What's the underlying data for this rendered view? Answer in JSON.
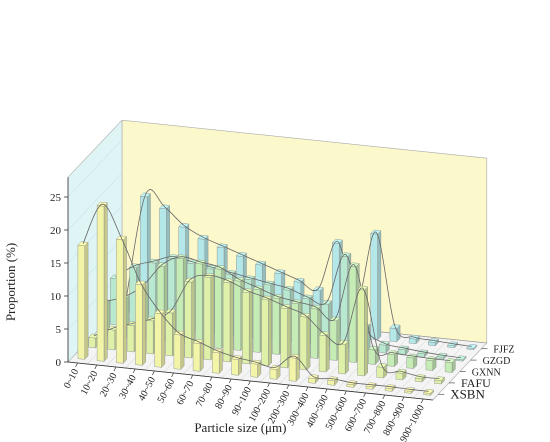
{
  "chart_data": {
    "type": "bar",
    "subtype": "3d-bar-with-smooth-line",
    "title": "",
    "xlabel": "Particle size (μm)",
    "ylabel": "Proportion (%)",
    "ylim": [
      0,
      25
    ],
    "yticks": [
      "0",
      "5",
      "10",
      "15",
      "20",
      "25"
    ],
    "categories": [
      "0~10",
      "10~20",
      "20~30",
      "30~40",
      "40~50",
      "50~60",
      "60~70",
      "70~80",
      "80~90",
      "90~100",
      "100~200",
      "200~300",
      "300~400",
      "400~500",
      "500~600",
      "600~700",
      "700~800",
      "800~900",
      "900~1000"
    ],
    "series": [
      {
        "name": "XSBN",
        "color": "#f2f5a8",
        "values": [
          17.2,
          23.5,
          18.7,
          12.2,
          8.1,
          5.2,
          4.2,
          3.1,
          2.4,
          2.0,
          1.5,
          3.5,
          0.7,
          0.7,
          0.4,
          0.4,
          0.4,
          0.3,
          0.3
        ]
      },
      {
        "name": "FAFU",
        "color": "#dff0a8",
        "values": [
          1.5,
          3.0,
          4.0,
          5.0,
          6.5,
          11.5,
          12.5,
          12.0,
          10.8,
          10.0,
          9.0,
          8.0,
          5.5,
          4.5,
          13.0,
          1.6,
          1.0,
          0.5,
          0.5
        ]
      },
      {
        "name": "GXNN",
        "color": "#c6ecb6",
        "values": [
          5.0,
          6.0,
          8.0,
          11.5,
          13.0,
          12.5,
          12.0,
          10.5,
          9.5,
          8.5,
          8.0,
          7.5,
          6.0,
          14.5,
          2.2,
          1.8,
          1.6,
          1.5,
          1.5
        ]
      },
      {
        "name": "GZGD",
        "color": "#b8e8cf",
        "values": [
          7.0,
          9.0,
          10.0,
          11.0,
          10.5,
          10.0,
          9.5,
          9.0,
          8.5,
          8.0,
          7.0,
          6.5,
          14.0,
          3.5,
          1.2,
          0.8,
          0.5,
          0.3,
          0.2
        ]
      },
      {
        "name": "FJFZ",
        "color": "#b4e8e8",
        "values": [
          2.0,
          18.0,
          16.5,
          14.0,
          12.5,
          11.5,
          10.5,
          9.5,
          8.5,
          7.5,
          6.5,
          14.0,
          5.0,
          16.0,
          2.0,
          0.7,
          0.5,
          0.3,
          0.2
        ]
      }
    ],
    "grid": true,
    "legend": "series labels at right end of each row"
  }
}
